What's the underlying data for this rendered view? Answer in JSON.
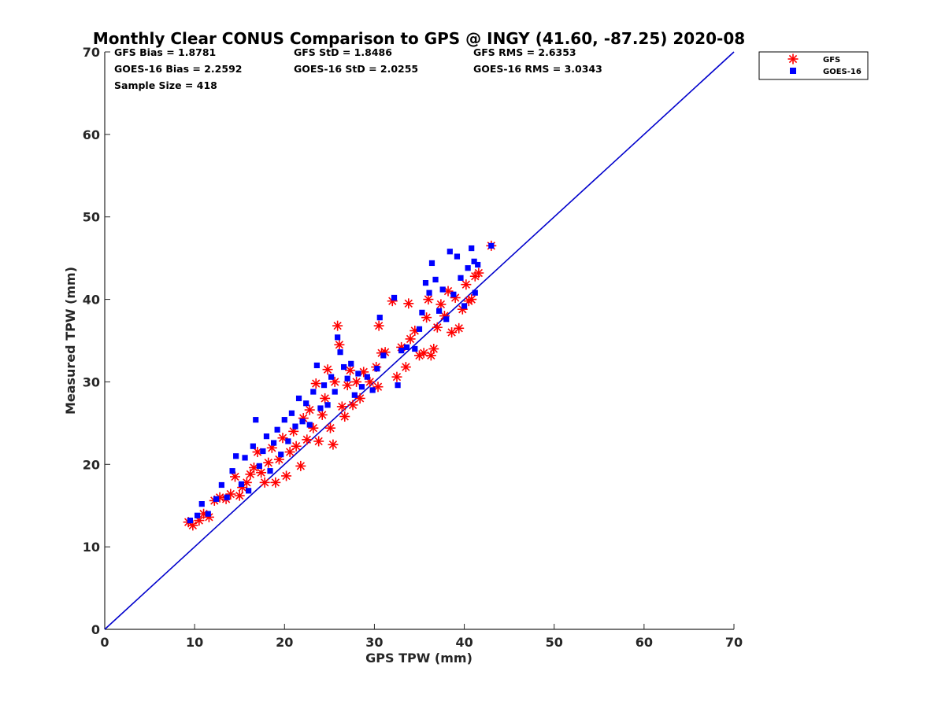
{
  "chart_data": {
    "type": "scatter",
    "title": "Monthly Clear CONUS Comparison to GPS @ INGY (41.60, -87.25) 2020-08",
    "xlabel": "GPS TPW (mm)",
    "ylabel": "Measured TPW (mm)",
    "xlim": [
      0,
      70
    ],
    "ylim": [
      0,
      70
    ],
    "xticks": [
      "0",
      "10",
      "20",
      "30",
      "40",
      "50",
      "60",
      "70"
    ],
    "yticks": [
      "0",
      "10",
      "20",
      "30",
      "40",
      "50",
      "60",
      "70"
    ],
    "grid": false,
    "legend_position": "top-right outside",
    "stats": [
      {
        "id": "gfs-bias",
        "text": "GFS Bias = 1.8781"
      },
      {
        "id": "gfs-std",
        "text": "GFS StD = 1.8486"
      },
      {
        "id": "gfs-rms",
        "text": "GFS RMS = 2.6353"
      },
      {
        "id": "goes-bias",
        "text": "GOES-16 Bias = 2.2592"
      },
      {
        "id": "goes-std",
        "text": "GOES-16 StD = 2.0255"
      },
      {
        "id": "goes-rms",
        "text": "GOES-16 RMS = 3.0343"
      },
      {
        "id": "sample-size",
        "text": "Sample Size = 418"
      }
    ],
    "reference_line": {
      "x": [
        0,
        70
      ],
      "y": [
        0,
        70
      ],
      "color": "#0000cc"
    },
    "series": [
      {
        "name": "GFS",
        "marker": "asterisk",
        "color": "#ff0000",
        "points": [
          [
            9.3,
            13.0
          ],
          [
            9.8,
            12.6
          ],
          [
            10.5,
            13.2
          ],
          [
            11.0,
            14.0
          ],
          [
            11.6,
            13.6
          ],
          [
            12.2,
            15.6
          ],
          [
            12.8,
            16.0
          ],
          [
            13.5,
            15.8
          ],
          [
            14.0,
            16.4
          ],
          [
            14.5,
            18.5
          ],
          [
            15.0,
            16.2
          ],
          [
            15.3,
            17.2
          ],
          [
            15.8,
            17.8
          ],
          [
            16.2,
            18.8
          ],
          [
            16.6,
            19.6
          ],
          [
            17.0,
            21.5
          ],
          [
            17.4,
            19.0
          ],
          [
            17.8,
            17.8
          ],
          [
            18.2,
            20.2
          ],
          [
            18.6,
            22.0
          ],
          [
            19.0,
            17.8
          ],
          [
            19.4,
            20.6
          ],
          [
            19.8,
            23.2
          ],
          [
            20.2,
            18.6
          ],
          [
            20.6,
            21.5
          ],
          [
            21.0,
            24.0
          ],
          [
            21.3,
            22.2
          ],
          [
            21.8,
            19.8
          ],
          [
            22.1,
            25.6
          ],
          [
            22.5,
            23.0
          ],
          [
            22.8,
            26.6
          ],
          [
            23.2,
            24.4
          ],
          [
            23.5,
            29.8
          ],
          [
            23.8,
            22.8
          ],
          [
            24.2,
            26.0
          ],
          [
            24.5,
            28.0
          ],
          [
            24.8,
            31.5
          ],
          [
            25.1,
            24.4
          ],
          [
            25.4,
            22.4
          ],
          [
            25.6,
            30.0
          ],
          [
            25.9,
            36.8
          ],
          [
            26.1,
            34.5
          ],
          [
            26.4,
            27.0
          ],
          [
            26.7,
            25.8
          ],
          [
            27.0,
            29.6
          ],
          [
            27.3,
            31.4
          ],
          [
            27.6,
            27.2
          ],
          [
            28.0,
            30.0
          ],
          [
            28.4,
            28.0
          ],
          [
            28.8,
            31.2
          ],
          [
            29.5,
            30.0
          ],
          [
            30.2,
            31.8
          ],
          [
            30.4,
            29.4
          ],
          [
            30.5,
            36.8
          ],
          [
            30.8,
            33.5
          ],
          [
            31.2,
            33.6
          ],
          [
            32.0,
            39.8
          ],
          [
            32.5,
            30.6
          ],
          [
            33.0,
            34.2
          ],
          [
            33.5,
            31.8
          ],
          [
            34.0,
            35.2
          ],
          [
            34.5,
            36.2
          ],
          [
            35.0,
            33.2
          ],
          [
            35.5,
            33.5
          ],
          [
            35.8,
            37.8
          ],
          [
            36.0,
            40.0
          ],
          [
            36.3,
            33.2
          ],
          [
            36.6,
            34.0
          ],
          [
            37.0,
            36.6
          ],
          [
            37.4,
            39.4
          ],
          [
            37.8,
            38.0
          ],
          [
            38.2,
            41.0
          ],
          [
            38.6,
            36.0
          ],
          [
            39.0,
            40.2
          ],
          [
            39.4,
            36.5
          ],
          [
            39.8,
            38.8
          ],
          [
            40.2,
            41.8
          ],
          [
            40.5,
            39.8
          ],
          [
            40.8,
            40.0
          ],
          [
            41.2,
            42.8
          ],
          [
            41.6,
            43.2
          ],
          [
            33.8,
            39.5
          ],
          [
            43.0,
            46.5
          ]
        ]
      },
      {
        "name": "GOES-16",
        "marker": "square",
        "color": "#0000ff",
        "points": [
          [
            9.5,
            13.2
          ],
          [
            10.3,
            13.8
          ],
          [
            10.8,
            15.2
          ],
          [
            11.5,
            14.0
          ],
          [
            12.4,
            15.8
          ],
          [
            13.0,
            17.5
          ],
          [
            13.6,
            16.0
          ],
          [
            14.2,
            19.2
          ],
          [
            14.6,
            21.0
          ],
          [
            15.2,
            17.6
          ],
          [
            15.6,
            20.8
          ],
          [
            16.0,
            16.8
          ],
          [
            16.5,
            22.2
          ],
          [
            16.8,
            25.4
          ],
          [
            17.2,
            19.8
          ],
          [
            17.6,
            21.6
          ],
          [
            18.0,
            23.4
          ],
          [
            18.4,
            19.2
          ],
          [
            18.8,
            22.6
          ],
          [
            19.2,
            24.2
          ],
          [
            19.6,
            21.2
          ],
          [
            20.0,
            25.4
          ],
          [
            20.4,
            22.8
          ],
          [
            20.8,
            26.2
          ],
          [
            21.2,
            24.6
          ],
          [
            21.6,
            28.0
          ],
          [
            22.0,
            25.2
          ],
          [
            22.4,
            27.4
          ],
          [
            22.8,
            24.8
          ],
          [
            23.2,
            28.8
          ],
          [
            23.6,
            32.0
          ],
          [
            24.0,
            26.8
          ],
          [
            24.4,
            29.6
          ],
          [
            24.8,
            27.2
          ],
          [
            25.2,
            30.6
          ],
          [
            25.6,
            28.8
          ],
          [
            25.9,
            35.4
          ],
          [
            26.2,
            33.6
          ],
          [
            26.6,
            31.8
          ],
          [
            27.0,
            30.4
          ],
          [
            27.4,
            32.2
          ],
          [
            27.8,
            28.4
          ],
          [
            28.2,
            31.0
          ],
          [
            28.6,
            29.4
          ],
          [
            29.2,
            30.6
          ],
          [
            29.8,
            29.0
          ],
          [
            30.3,
            31.6
          ],
          [
            30.6,
            37.8
          ],
          [
            31.0,
            33.2
          ],
          [
            32.2,
            40.2
          ],
          [
            32.6,
            29.6
          ],
          [
            33.0,
            33.8
          ],
          [
            33.6,
            34.2
          ],
          [
            34.5,
            34.0
          ],
          [
            35.0,
            36.4
          ],
          [
            35.3,
            38.4
          ],
          [
            35.7,
            42.0
          ],
          [
            36.1,
            40.8
          ],
          [
            36.4,
            44.4
          ],
          [
            36.8,
            42.4
          ],
          [
            37.2,
            38.6
          ],
          [
            37.6,
            41.2
          ],
          [
            38.0,
            37.6
          ],
          [
            38.4,
            45.8
          ],
          [
            38.8,
            40.6
          ],
          [
            39.2,
            45.2
          ],
          [
            39.6,
            42.6
          ],
          [
            40.0,
            39.2
          ],
          [
            40.4,
            43.8
          ],
          [
            40.8,
            46.2
          ],
          [
            41.1,
            44.6
          ],
          [
            41.5,
            44.2
          ],
          [
            41.2,
            40.8
          ],
          [
            43.0,
            46.5
          ]
        ]
      }
    ]
  }
}
